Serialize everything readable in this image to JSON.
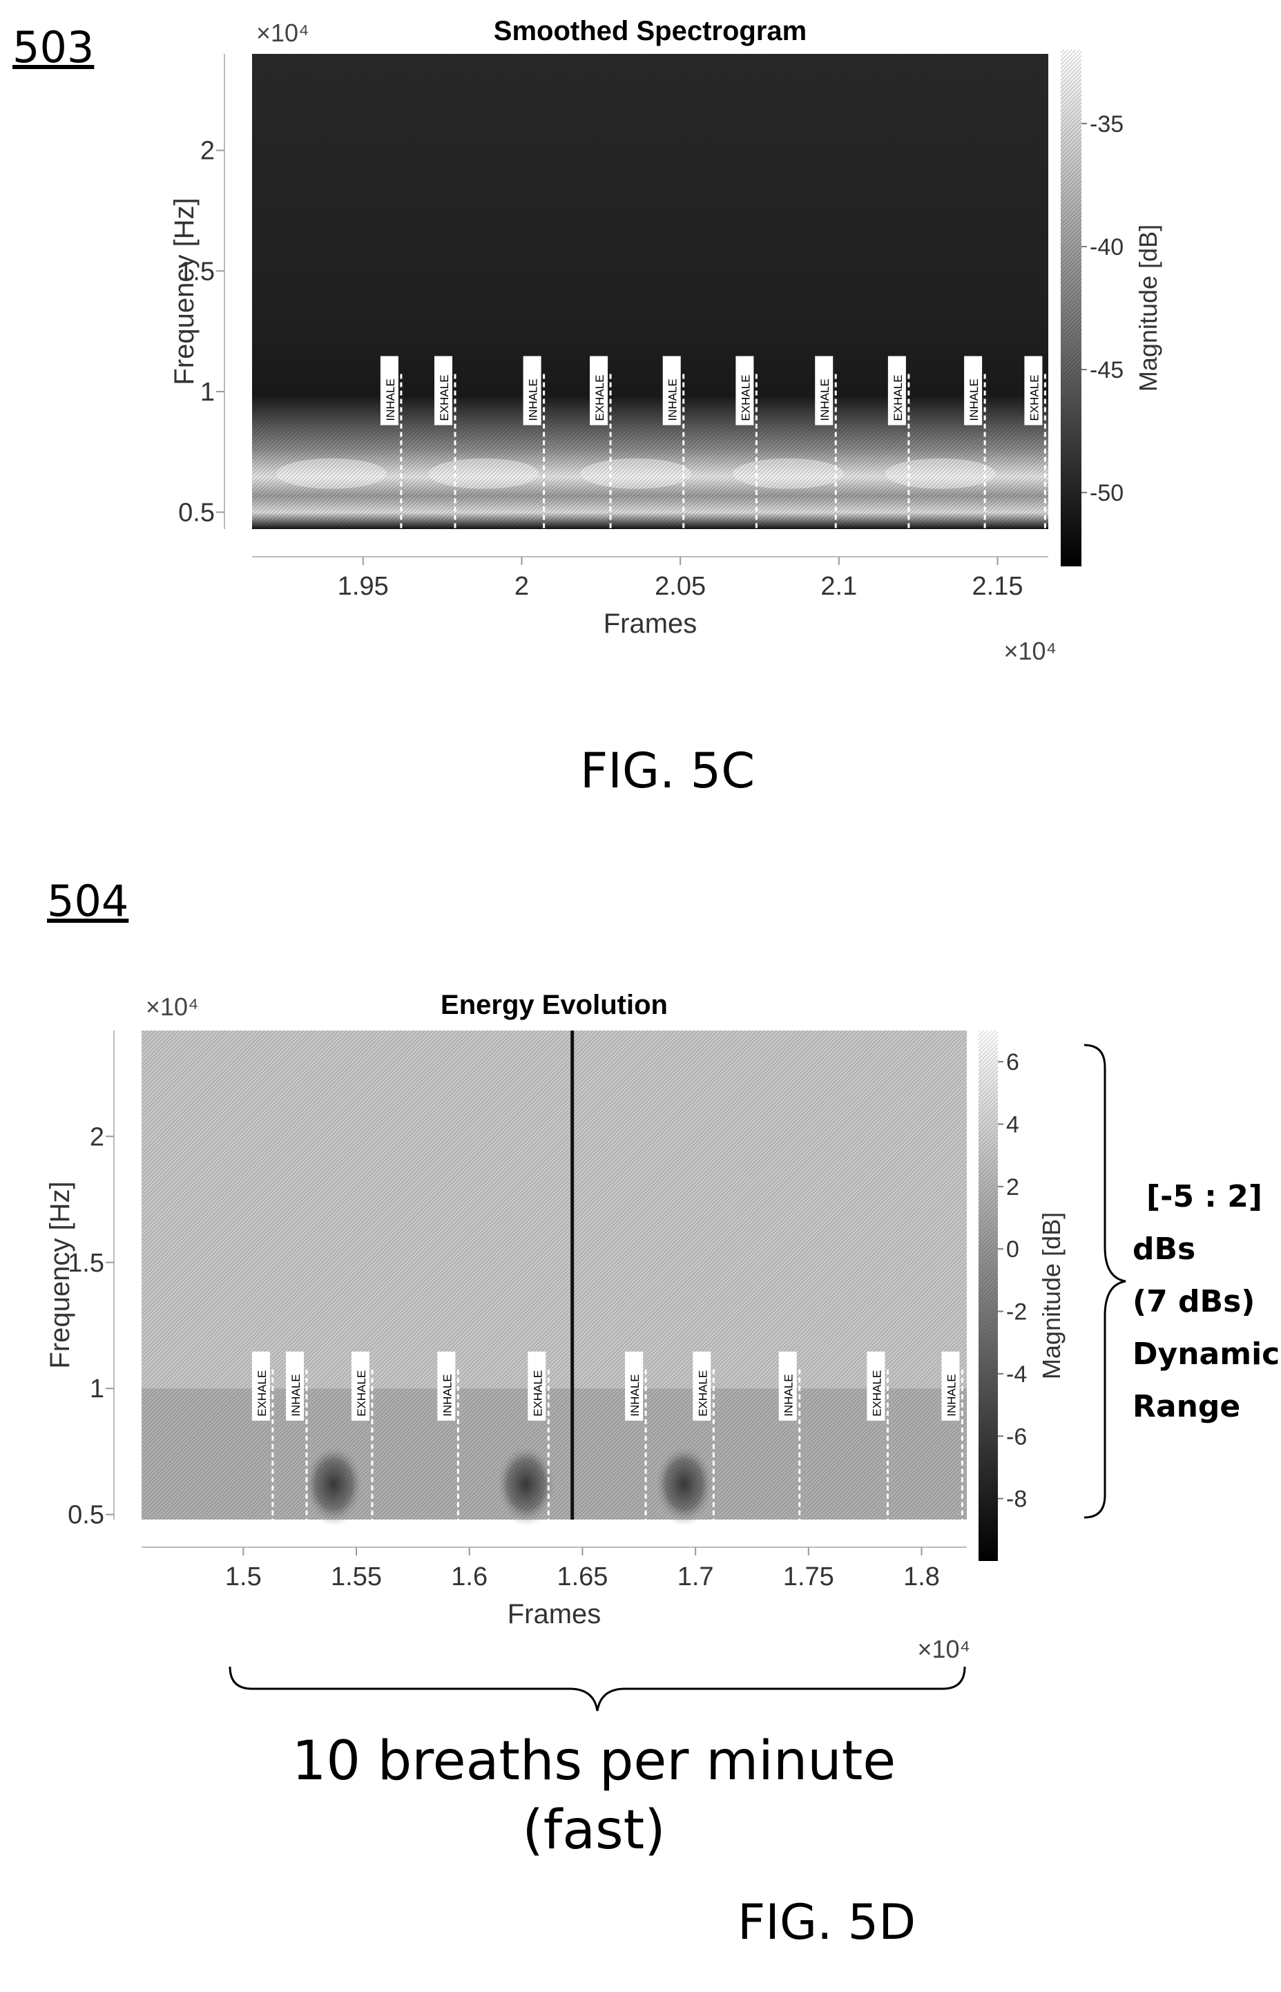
{
  "figure_c": {
    "ref_label": "503",
    "caption": "FIG. 5C"
  },
  "figure_d": {
    "ref_label": "504",
    "caption": "FIG. 5D",
    "side_note": [
      "[-5 : 2]",
      "dBs",
      "(7 dBs)",
      "Dynamic",
      "Range"
    ],
    "bottom_note": [
      "10 breaths per minute",
      "(fast)"
    ]
  },
  "chart_data": [
    {
      "type": "heatmap",
      "title": "Smoothed Spectrogram",
      "xlabel": "Frames",
      "ylabel": "Frequency [Hz]",
      "colorbar_label": "Magnitude [dB]",
      "x_multiplier": "×10⁴",
      "y_multiplier": "×10⁴",
      "xlim": [
        1.915,
        2.166
      ],
      "ylim": [
        0.43,
        2.4
      ],
      "x_ticks": [
        1.95,
        2.0,
        2.05,
        2.1,
        2.15
      ],
      "x_tick_labels": [
        "1.95",
        "2",
        "2.05",
        "2.1",
        "2.15"
      ],
      "y_ticks": [
        0.5,
        1.0,
        1.5,
        2.0
      ],
      "y_tick_labels": [
        "0.5",
        "1",
        "1.5",
        "2"
      ],
      "clim": [
        -53,
        -32
      ],
      "colorbar_ticks": [
        -35,
        -40,
        -45,
        -50
      ],
      "colorbar_tick_labels": [
        "-35",
        "-40",
        "-45",
        "-50"
      ],
      "annotations": [
        {
          "label": "INHALE",
          "x": 1.962
        },
        {
          "label": "EXHALE",
          "x": 1.979
        },
        {
          "label": "INHALE",
          "x": 2.007
        },
        {
          "label": "EXHALE",
          "x": 2.028
        },
        {
          "label": "INHALE",
          "x": 2.051
        },
        {
          "label": "EXHALE",
          "x": 2.074
        },
        {
          "label": "INHALE",
          "x": 2.099
        },
        {
          "label": "EXHALE",
          "x": 2.122
        },
        {
          "label": "INHALE",
          "x": 2.146
        },
        {
          "label": "EXHALE",
          "x": 2.165
        }
      ],
      "colors": {
        "low": "#101010",
        "high": "#ffffff"
      }
    },
    {
      "type": "heatmap",
      "title": "Energy Evolution",
      "xlabel": "Frames",
      "ylabel": "Frequency [Hz]",
      "colorbar_label": "Magnitude [dB]",
      "x_multiplier": "×10⁴",
      "y_multiplier": "×10⁴",
      "xlim": [
        1.455,
        1.82
      ],
      "ylim": [
        0.48,
        2.42
      ],
      "x_ticks": [
        1.5,
        1.55,
        1.6,
        1.65,
        1.7,
        1.75,
        1.8
      ],
      "x_tick_labels": [
        "1.5",
        "1.55",
        "1.6",
        "1.65",
        "1.7",
        "1.75",
        "1.8"
      ],
      "y_ticks": [
        0.5,
        1.0,
        1.5,
        2.0
      ],
      "y_tick_labels": [
        "0.5",
        "1",
        "1.5",
        "2"
      ],
      "clim": [
        -10,
        7
      ],
      "colorbar_ticks": [
        6,
        4,
        2,
        0,
        -2,
        -4,
        -6,
        -8
      ],
      "colorbar_tick_labels": [
        "6",
        "4",
        "2",
        "0",
        "-2",
        "-4",
        "-6",
        "-8"
      ],
      "vertical_line_x": 1.6455,
      "annotations": [
        {
          "label": "EXHALE",
          "x": 1.513
        },
        {
          "label": "INHALE",
          "x": 1.528
        },
        {
          "label": "EXHALE",
          "x": 1.557
        },
        {
          "label": "INHALE",
          "x": 1.595
        },
        {
          "label": "EXHALE",
          "x": 1.635
        },
        {
          "label": "INHALE",
          "x": 1.678
        },
        {
          "label": "EXHALE",
          "x": 1.708
        },
        {
          "label": "INHALE",
          "x": 1.746
        },
        {
          "label": "EXHALE",
          "x": 1.785
        },
        {
          "label": "INHALE",
          "x": 1.818
        }
      ],
      "colors": {
        "low": "#000000",
        "high": "#ffffff"
      }
    }
  ]
}
